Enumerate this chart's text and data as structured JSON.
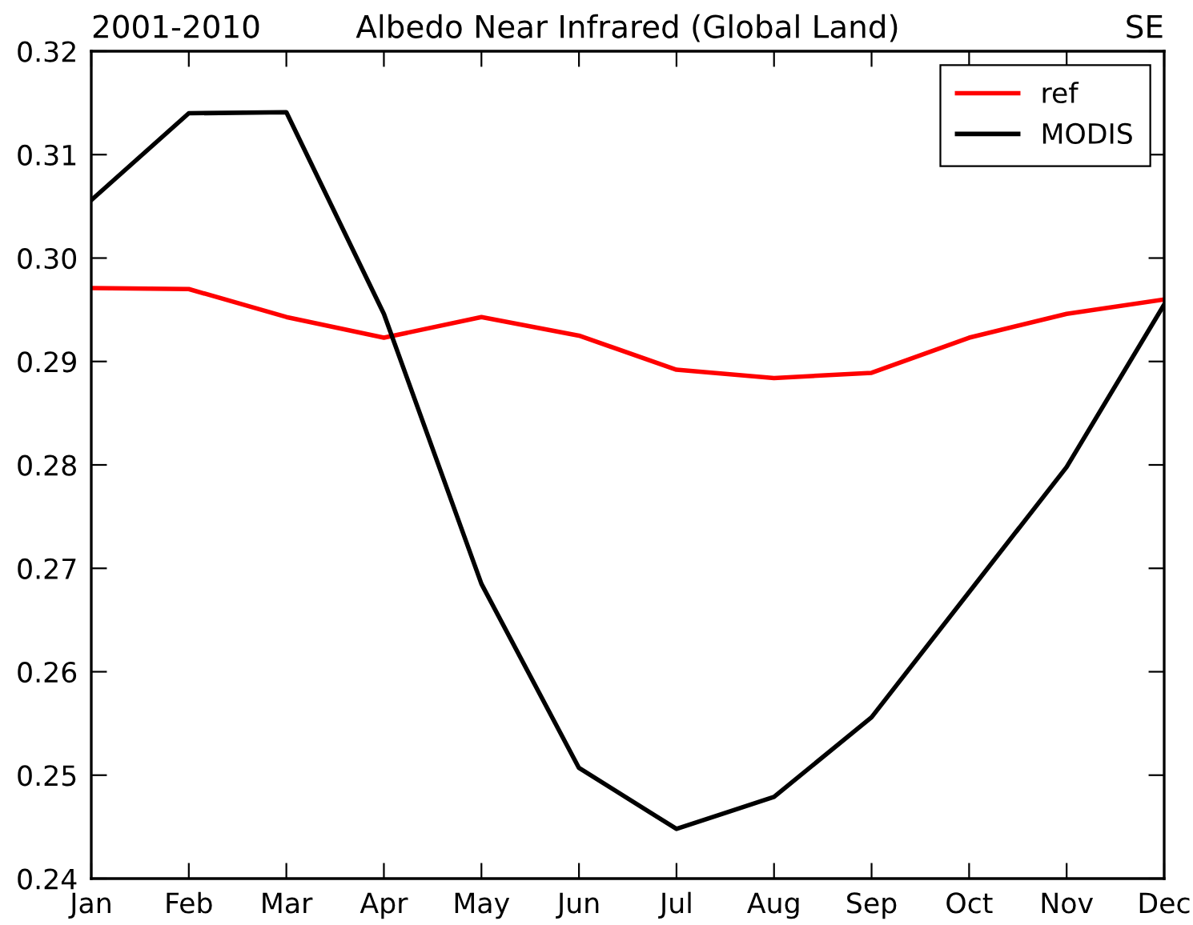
{
  "chart_data": {
    "type": "line",
    "title": "Albedo Near Infrared (Global Land)",
    "annotations": [
      "2001-2010",
      "SE"
    ],
    "categories": [
      "Jan",
      "Feb",
      "Mar",
      "Apr",
      "May",
      "Jun",
      "Jul",
      "Aug",
      "Sep",
      "Oct",
      "Nov",
      "Dec"
    ],
    "series": [
      {
        "name": "ref",
        "color": "#ff0000",
        "values": [
          0.2971,
          0.297,
          0.2943,
          0.2923,
          0.2943,
          0.2925,
          0.2892,
          0.2884,
          0.2889,
          0.2923,
          0.2946,
          0.296
        ]
      },
      {
        "name": "MODIS",
        "color": "#000000",
        "values": [
          0.3056,
          0.314,
          0.3141,
          0.2946,
          0.2685,
          0.2507,
          0.2448,
          0.2479,
          0.2556,
          0.2677,
          0.2798,
          0.2955
        ]
      }
    ],
    "ylim": [
      0.24,
      0.32
    ],
    "yticks": [
      0.24,
      0.25,
      0.26,
      0.27,
      0.28,
      0.29,
      {
        "value": 0.3,
        "label": "0.30"
      },
      0.31,
      0.32
    ],
    "grid": false,
    "legend": "top right",
    "marker": "none",
    "line_style": "solid"
  }
}
